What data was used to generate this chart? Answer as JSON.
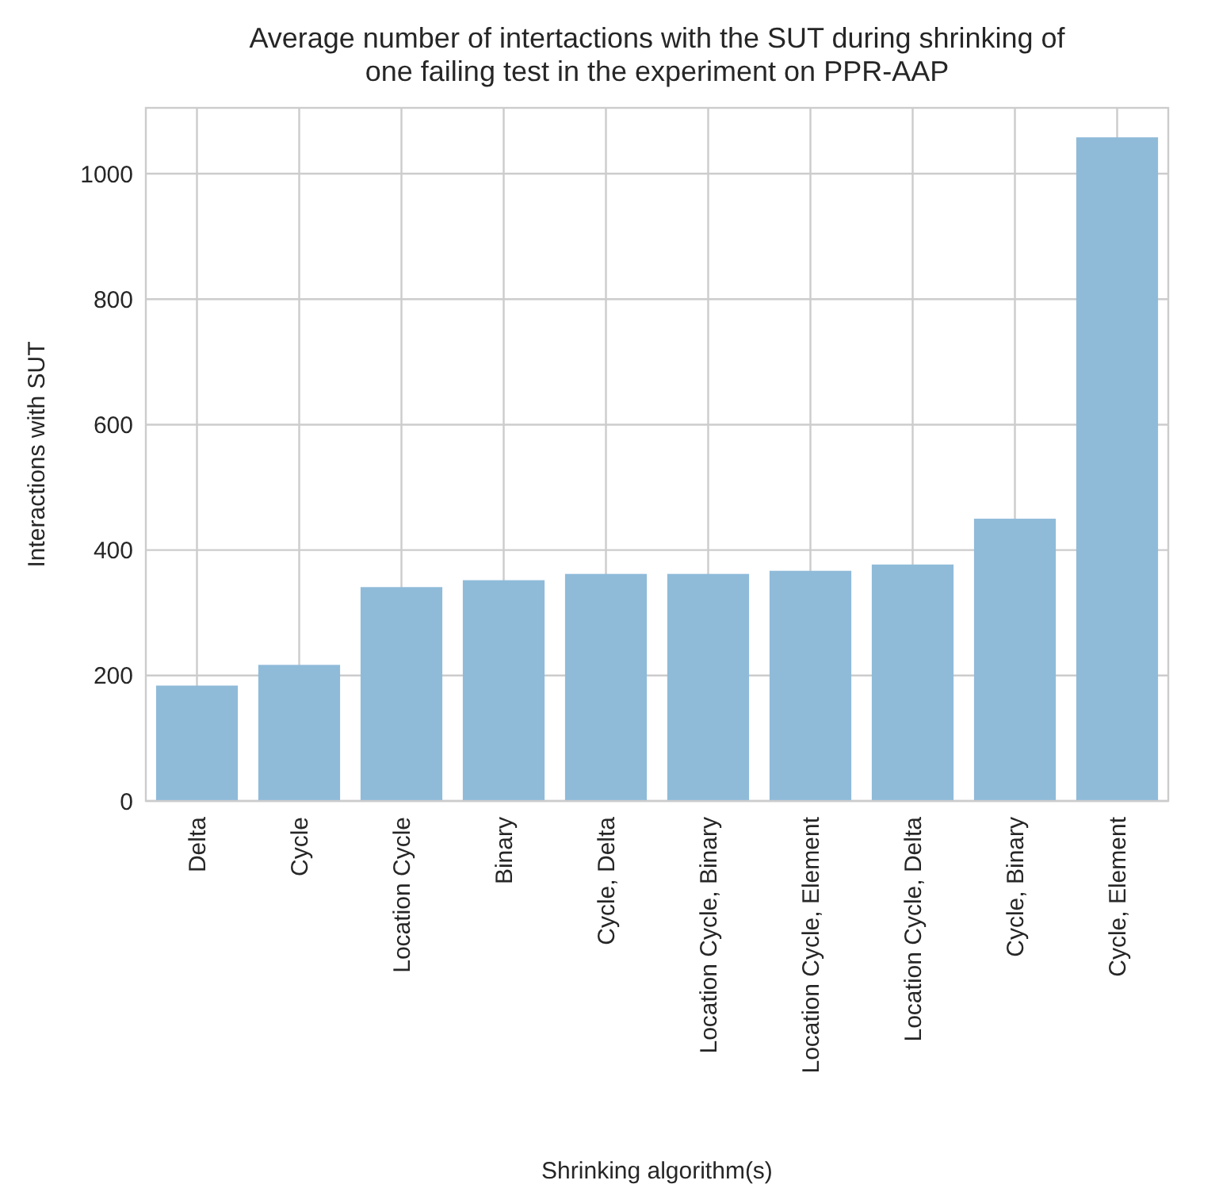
{
  "chart_data": {
    "type": "bar",
    "title": "Average number of intertactions with the SUT during shrinking of\none failing test in the experiment on PPR-AAP",
    "xlabel": "Shrinking algorithm(s)",
    "ylabel": "Interactions with SUT",
    "categories": [
      "Delta",
      "Cycle",
      "Location Cycle",
      "Binary",
      "Cycle, Delta",
      "Location Cycle, Binary",
      "Location Cycle, Element",
      "Location Cycle, Delta",
      "Cycle, Binary",
      "Cycle, Element"
    ],
    "values": [
      184,
      217,
      341,
      352,
      362,
      362,
      367,
      377,
      450,
      1058
    ],
    "color": "#8fbbd9",
    "ylim": [
      0,
      1105
    ],
    "yticks": [
      0,
      200,
      400,
      600,
      800,
      1000
    ],
    "grid": true
  }
}
